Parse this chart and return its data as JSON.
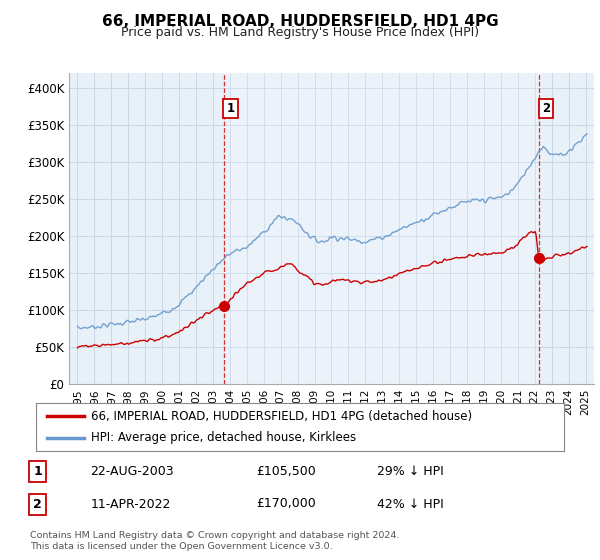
{
  "title": "66, IMPERIAL ROAD, HUDDERSFIELD, HD1 4PG",
  "subtitle": "Price paid vs. HM Land Registry's House Price Index (HPI)",
  "legend_line1": "66, IMPERIAL ROAD, HUDDERSFIELD, HD1 4PG (detached house)",
  "legend_line2": "HPI: Average price, detached house, Kirklees",
  "footnote1": "Contains HM Land Registry data © Crown copyright and database right 2024.",
  "footnote2": "This data is licensed under the Open Government Licence v3.0.",
  "table_rows": [
    {
      "num": "1",
      "date": "22-AUG-2003",
      "price": "£105,500",
      "hpi": "29% ↓ HPI"
    },
    {
      "num": "2",
      "date": "11-APR-2022",
      "price": "£170,000",
      "hpi": "42% ↓ HPI"
    }
  ],
  "sale1_x": 2003.65,
  "sale1_y": 105500,
  "sale2_x": 2022.27,
  "sale2_y": 170000,
  "vline1_x": 2003.65,
  "vline2_x": 2022.27,
  "red_color": "#cc0000",
  "blue_color": "#6699cc",
  "fill_color": "#ddeeff",
  "ylim_min": 0,
  "ylim_max": 420000,
  "yticks": [
    0,
    50000,
    100000,
    150000,
    200000,
    250000,
    300000,
    350000,
    400000
  ],
  "ytick_labels": [
    "£0",
    "£50K",
    "£100K",
    "£150K",
    "£200K",
    "£250K",
    "£300K",
    "£350K",
    "£400K"
  ],
  "xlim_min": 1994.5,
  "xlim_max": 2025.5,
  "background_color": "#ffffff",
  "chart_bg_color": "#e8f0f8",
  "grid_color": "#c8d8e8"
}
